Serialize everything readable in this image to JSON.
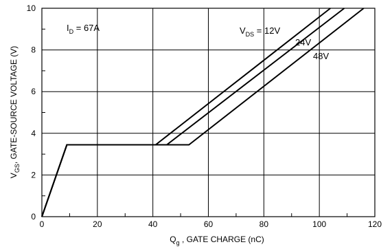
{
  "chart_data": {
    "type": "line",
    "title": "",
    "xlabel": {
      "main": "Q",
      "sub": "g",
      "rest": " , GATE CHARGE (nC)"
    },
    "ylabel": {
      "main": "V",
      "sub": "GS",
      "rest": ", GATE-SOURCE VOLTAGE (V)"
    },
    "xlim": [
      0,
      120
    ],
    "ylim": [
      0,
      10
    ],
    "x_ticks": [
      0,
      20,
      40,
      60,
      80,
      100,
      120
    ],
    "y_ticks": [
      0,
      2,
      4,
      6,
      8,
      10
    ],
    "x_tick_labels": [
      "0",
      "20",
      "40",
      "60",
      "80",
      "100",
      "120"
    ],
    "y_tick_labels": [
      "0",
      "2",
      "4",
      "6",
      "8",
      "10"
    ],
    "grid": true,
    "line_color": "#000000",
    "condition": {
      "main": "I",
      "sub": "D",
      "rest": "  = 67A"
    },
    "legend_prefix": {
      "main": "V",
      "sub": "DS",
      "rest": " = "
    },
    "series": [
      {
        "name": "12V",
        "x": [
          0,
          9,
          41,
          104
        ],
        "y": [
          0,
          3.45,
          3.45,
          10
        ]
      },
      {
        "name": "24V",
        "x": [
          0,
          9,
          45,
          109
        ],
        "y": [
          0,
          3.45,
          3.45,
          10
        ]
      },
      {
        "name": "48V",
        "x": [
          0,
          9,
          53,
          116
        ],
        "y": [
          0,
          3.45,
          3.45,
          10
        ]
      }
    ]
  }
}
